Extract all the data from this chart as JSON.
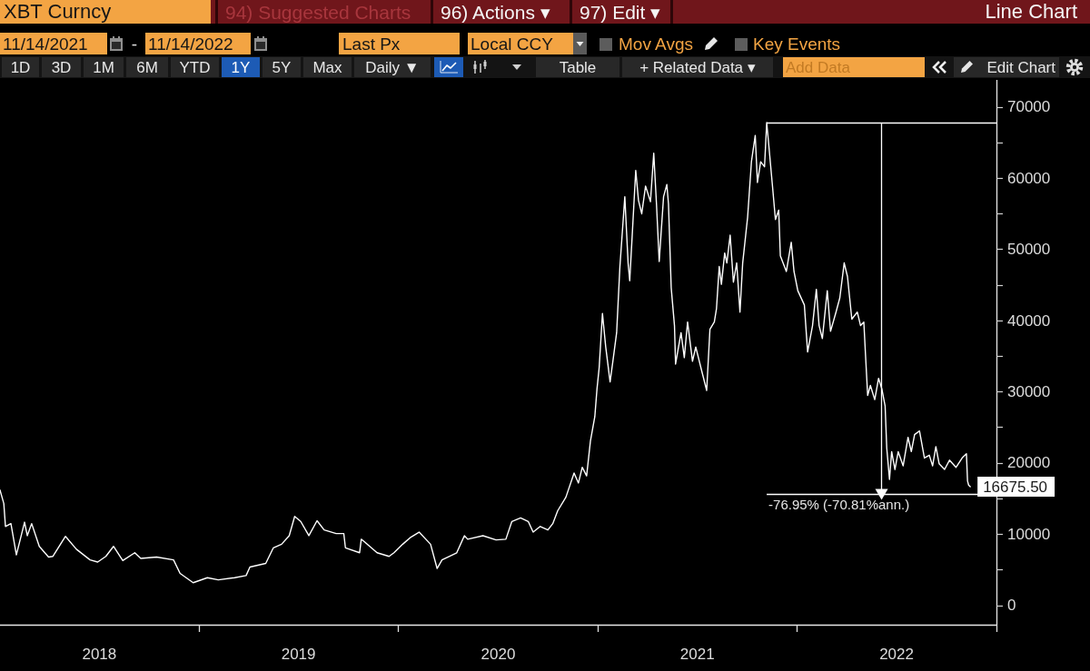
{
  "chart_data": {
    "type": "line",
    "title": "XBT Curncy",
    "annotations": [
      "94) Suggested Charts",
      "96) Actions ▾",
      "97) Edit ▾",
      "Line Chart",
      "11/14/2021",
      "-",
      "11/14/2022",
      "Last Px",
      "Local CCY",
      "Mov Avgs",
      "Key Events",
      "1D",
      "3D",
      "1M",
      "6M",
      "YTD",
      "1Y",
      "5Y",
      "Max",
      "Daily ▼",
      "Table",
      "+ Related Data ▾",
      "Add Data",
      "Edit Chart"
    ],
    "x": [
      "2018-01-01",
      "2018-01-08",
      "2018-01-11",
      "2018-01-21",
      "2018-01-31",
      "2018-02-15",
      "2018-02-20",
      "2018-02-28",
      "2018-03-14",
      "2018-03-31",
      "2018-04-08",
      "2018-05-01",
      "2018-05-21",
      "2018-06-15",
      "2018-06-29",
      "2018-07-14",
      "2018-07-28",
      "2018-08-14",
      "2018-09-05",
      "2018-09-16",
      "2018-10-15",
      "2018-11-15",
      "2018-11-27",
      "2018-12-21",
      "2019-01-16",
      "2019-02-05",
      "2019-03-07",
      "2019-03-28",
      "2019-04-04",
      "2019-05-03",
      "2019-05-17",
      "2019-06-01",
      "2019-06-15",
      "2019-06-25",
      "2019-07-06",
      "2019-07-21",
      "2019-08-05",
      "2019-08-18",
      "2019-09-09",
      "2019-09-23",
      "2019-09-26",
      "2019-10-22",
      "2019-10-25",
      "2019-10-30",
      "2019-11-23",
      "2019-12-15",
      "2019-12-24",
      "2020-01-09",
      "2020-01-24",
      "2020-02-08",
      "2020-02-29",
      "2020-03-12",
      "2020-03-21",
      "2020-04-17",
      "2020-05-01",
      "2020-05-07",
      "2020-06-04",
      "2020-06-28",
      "2020-07-16",
      "2020-07-27",
      "2020-08-12",
      "2020-08-26",
      "2020-09-04",
      "2020-09-17",
      "2020-10-01",
      "2020-10-10",
      "2020-10-19",
      "2020-11-03",
      "2020-11-18",
      "2020-11-26",
      "2020-12-03",
      "2020-12-11",
      "2020-12-18",
      "2020-12-26",
      "2020-12-30",
      "2021-01-03",
      "2021-01-09",
      "2021-01-15",
      "2021-01-23",
      "2021-01-29",
      "2021-02-04",
      "2021-02-10",
      "2021-02-19",
      "2021-02-25",
      "2021-02-28",
      "2021-03-11",
      "2021-03-16",
      "2021-03-22",
      "2021-03-29",
      "2021-04-07",
      "2021-04-13",
      "2021-04-18",
      "2021-04-23",
      "2021-05-01",
      "2021-05-07",
      "2021-05-10",
      "2021-05-15",
      "2021-05-21",
      "2021-05-23",
      "2021-06-02",
      "2021-06-08",
      "2021-06-14",
      "2021-06-23",
      "2021-06-29",
      "2021-07-10",
      "2021-07-19",
      "2021-07-25",
      "2021-08-02",
      "2021-08-06",
      "2021-08-11",
      "2021-08-15",
      "2021-08-21",
      "2021-08-25",
      "2021-08-31",
      "2021-09-06",
      "2021-09-12",
      "2021-09-18",
      "2021-09-23",
      "2021-10-02",
      "2021-10-09",
      "2021-10-16",
      "2021-10-20",
      "2021-10-26",
      "2021-11-02",
      "2021-11-06",
      "2021-11-10",
      "2021-11-16",
      "2021-11-22",
      "2021-11-28",
      "2021-12-01",
      "2021-12-12",
      "2021-12-21",
      "2021-12-26",
      "2022-01-02",
      "2022-01-14",
      "2022-01-20",
      "2022-01-29",
      "2022-02-05",
      "2022-02-10",
      "2022-02-16",
      "2022-02-25",
      "2022-03-03",
      "2022-03-13",
      "2022-03-20",
      "2022-03-28",
      "2022-04-03",
      "2022-04-11",
      "2022-04-21",
      "2022-04-27",
      "2022-05-03",
      "2022-05-06",
      "2022-05-10",
      "2022-05-15",
      "2022-05-23",
      "2022-05-30",
      "2022-06-05",
      "2022-06-11",
      "2022-06-14",
      "2022-06-19",
      "2022-06-23",
      "2022-06-29",
      "2022-07-05",
      "2022-07-14",
      "2022-07-23",
      "2022-07-29",
      "2022-08-04",
      "2022-08-13",
      "2022-08-22",
      "2022-08-31",
      "2022-09-06",
      "2022-09-12",
      "2022-09-18",
      "2022-09-28",
      "2022-10-07",
      "2022-10-19",
      "2022-10-31",
      "2022-11-07",
      "2022-11-09",
      "2022-11-11",
      "2022-11-14"
    ],
    "values": [
      16200,
      14300,
      11100,
      11500,
      7100,
      11700,
      9800,
      11500,
      8300,
      6800,
      6900,
      9700,
      7900,
      6400,
      6100,
      6900,
      8300,
      6300,
      7400,
      6600,
      6800,
      6400,
      4500,
      3200,
      3900,
      3600,
      3900,
      4200,
      5400,
      5900,
      8100,
      8600,
      9800,
      12500,
      11800,
      9800,
      11900,
      10600,
      10100,
      10100,
      8100,
      7400,
      9300,
      9000,
      7400,
      6900,
      7400,
      8600,
      9600,
      10300,
      8600,
      5200,
      6400,
      7400,
      9800,
      9300,
      9800,
      9200,
      9300,
      11800,
      12300,
      11800,
      10300,
      11100,
      10600,
      11500,
      13300,
      15200,
      18600,
      17200,
      19400,
      18200,
      23100,
      26500,
      30400,
      33400,
      41000,
      36300,
      31400,
      34800,
      38300,
      47600,
      57400,
      48100,
      45600,
      61100,
      56900,
      55000,
      58900,
      56700,
      63500,
      56400,
      48300,
      57400,
      59100,
      56400,
      44600,
      39300,
      33900,
      38300,
      34800,
      39800,
      34300,
      36300,
      32900,
      30200,
      38800,
      39800,
      41700,
      47600,
      45100,
      49500,
      48100,
      52000,
      45400,
      48100,
      41200,
      48100,
      54500,
      62300,
      66000,
      59400,
      62300,
      61600,
      67800,
      64500,
      59400,
      54200,
      55500,
      49100,
      46900,
      51000,
      46900,
      44200,
      42200,
      35600,
      39300,
      44400,
      39300,
      37500,
      44200,
      38500,
      41200,
      43200,
      48100,
      46200,
      40200,
      41200,
      39300,
      39800,
      35300,
      29500,
      30900,
      28900,
      31900,
      30400,
      28000,
      22100,
      17700,
      21600,
      19100,
      21600,
      19600,
      23600,
      21600,
      24000,
      24500,
      20700,
      21100,
      19600,
      22300,
      19900,
      19100,
      20400,
      19400,
      20800,
      21300,
      17500,
      16900,
      16675.5
    ],
    "value_labels": [
      null,
      null,
      null,
      null,
      null,
      null,
      null,
      null,
      null,
      null,
      null,
      null,
      null,
      null,
      null,
      null,
      null,
      null,
      null,
      null,
      null,
      null,
      null,
      null,
      null,
      null,
      null,
      null,
      null,
      null,
      null,
      null,
      null,
      null,
      null,
      null,
      null,
      null,
      null,
      null,
      null,
      null,
      null,
      null,
      null,
      null,
      null,
      null,
      null,
      null,
      null,
      null,
      null,
      null,
      null,
      null,
      null,
      null,
      null,
      null,
      null,
      null,
      null,
      null,
      null,
      null,
      null,
      null,
      null,
      null,
      null,
      null,
      null,
      null,
      null,
      null,
      null,
      null,
      null,
      null,
      null,
      null,
      null,
      null,
      null,
      null,
      null,
      null,
      null,
      null,
      null,
      null,
      null,
      null,
      null,
      null,
      null,
      null,
      null,
      null,
      null,
      null,
      null,
      null,
      null,
      null,
      null,
      null,
      null,
      null,
      null,
      null,
      null,
      null,
      null,
      null,
      null,
      null,
      null,
      null,
      null,
      null,
      null,
      null,
      null,
      null,
      null,
      null,
      null,
      null,
      null,
      null,
      null,
      null,
      null,
      null,
      null,
      null,
      null,
      null,
      null,
      null,
      null,
      null,
      null,
      null,
      null,
      null,
      null,
      null,
      null,
      null,
      null,
      null,
      null,
      null,
      null,
      null,
      null,
      null,
      null,
      null,
      null,
      null,
      null,
      null,
      null,
      null,
      null,
      null,
      null,
      null,
      null,
      null,
      null,
      null,
      null,
      null,
      null,
      "16675.50"
    ],
    "color": "#ffffff",
    "xlim": [
      "2018-01-01",
      "2023-01-01"
    ],
    "xticks": [
      {
        "value": "2018-07-02",
        "label": "2018"
      },
      {
        "value": "2019-01-01",
        "label": null
      },
      {
        "value": "2019-07-02",
        "label": "2019"
      },
      {
        "value": "2020-01-01",
        "label": null
      },
      {
        "value": "2020-07-02",
        "label": "2020"
      },
      {
        "value": "2021-01-01",
        "label": null
      },
      {
        "value": "2021-07-02",
        "label": "2021"
      },
      {
        "value": "2022-01-01",
        "label": null
      },
      {
        "value": "2022-07-02",
        "label": "2022"
      },
      {
        "value": "2023-01-01",
        "label": null
      }
    ],
    "ylim": [
      -2700,
      73800
    ],
    "yticks": [
      0,
      {
        "value": 5000,
        "label": null
      },
      10000,
      {
        "value": 15000,
        "label": null
      },
      20000,
      {
        "value": 25000,
        "label": null
      },
      30000,
      {
        "value": 35000,
        "label": null
      },
      40000,
      {
        "value": 45000,
        "label": null
      },
      50000,
      {
        "value": 55000,
        "label": null
      },
      60000,
      {
        "value": 65000,
        "label": null
      },
      70000
    ],
    "ref_lines": [
      {
        "axis": "y",
        "value": 67800,
        "color": "#ffffff"
      },
      {
        "axis": "y",
        "value": 15600,
        "label": "-76.95% (-70.81%ann.)",
        "color": "#ffffff"
      }
    ]
  }
}
